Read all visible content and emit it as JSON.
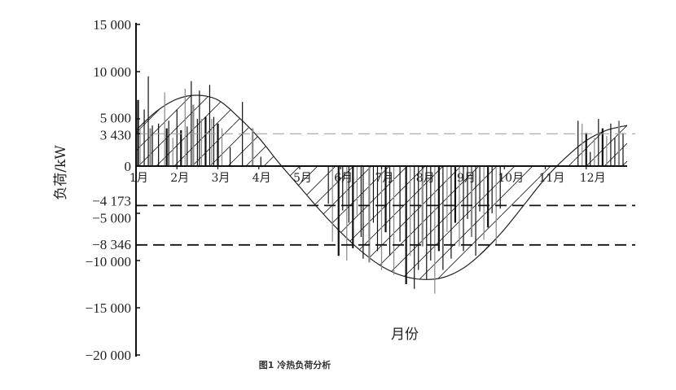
{
  "chart_data": {
    "type": "bar",
    "title": "",
    "caption": "图1 冷热负荷分析",
    "xlabel": "月份",
    "ylabel": "负荷/kW",
    "ylim": [
      -20000,
      15000
    ],
    "xlim": [
      1,
      13
    ],
    "y_ticks": [
      {
        "value": 15000,
        "label": "15 000"
      },
      {
        "value": 10000,
        "label": "10 000"
      },
      {
        "value": 5000,
        "label": "5 000"
      },
      {
        "value": 3430,
        "label": "3 430"
      },
      {
        "value": 0,
        "label": "0"
      },
      {
        "value": -4173,
        "label": "−4 173"
      },
      {
        "value": -5000,
        "label": "−5 000"
      },
      {
        "value": -8346,
        "label": "−8 346"
      },
      {
        "value": -10000,
        "label": "−10 000"
      },
      {
        "value": -15000,
        "label": "−15 000"
      },
      {
        "value": -20000,
        "label": "−20 000"
      }
    ],
    "x_ticks": [
      {
        "value": 1,
        "label": "1月"
      },
      {
        "value": 2,
        "label": "2月"
      },
      {
        "value": 3,
        "label": "3月"
      },
      {
        "value": 4,
        "label": "4月"
      },
      {
        "value": 5,
        "label": "5月"
      },
      {
        "value": 6,
        "label": "6月"
      },
      {
        "value": 7,
        "label": "7月"
      },
      {
        "value": 8,
        "label": "8月"
      },
      {
        "value": 9,
        "label": "9月"
      },
      {
        "value": 10,
        "label": "10月"
      },
      {
        "value": 11,
        "label": "11月"
      },
      {
        "value": 12,
        "label": "12月"
      }
    ],
    "reference_lines": [
      {
        "value": 3430,
        "style": "dashed",
        "color": "#999999"
      },
      {
        "value": -4173,
        "style": "dashed",
        "color": "#111111"
      },
      {
        "value": -8346,
        "style": "dashed",
        "color": "#111111"
      }
    ],
    "curve": [
      [
        1,
        3800
      ],
      [
        1.5,
        5800
      ],
      [
        2,
        7100
      ],
      [
        2.5,
        7500
      ],
      [
        3,
        7000
      ],
      [
        3.5,
        5200
      ],
      [
        4,
        3000
      ],
      [
        4.5,
        300
      ],
      [
        5,
        -2200
      ],
      [
        5.5,
        -4700
      ],
      [
        6,
        -7000
      ],
      [
        6.5,
        -9000
      ],
      [
        7,
        -10600
      ],
      [
        7.5,
        -11600
      ],
      [
        8,
        -12000
      ],
      [
        8.5,
        -11800
      ],
      [
        9,
        -10800
      ],
      [
        9.5,
        -9000
      ],
      [
        10,
        -6700
      ],
      [
        10.5,
        -4000
      ],
      [
        11,
        -1300
      ],
      [
        11.5,
        900
      ],
      [
        12,
        2700
      ],
      [
        12.5,
        3800
      ],
      [
        13,
        4300
      ]
    ],
    "bars": [
      [
        1.05,
        7000
      ],
      [
        1.1,
        4000
      ],
      [
        1.2,
        6000
      ],
      [
        1.3,
        9500
      ],
      [
        1.35,
        4000
      ],
      [
        1.4,
        4300
      ],
      [
        1.55,
        4500
      ],
      [
        1.7,
        7800
      ],
      [
        1.75,
        4000
      ],
      [
        1.8,
        4800
      ],
      [
        1.9,
        3000
      ],
      [
        2.0,
        6000
      ],
      [
        2.1,
        3800
      ],
      [
        2.2,
        8200
      ],
      [
        2.25,
        4200
      ],
      [
        2.35,
        9000
      ],
      [
        2.4,
        6500
      ],
      [
        2.5,
        5000
      ],
      [
        2.55,
        8000
      ],
      [
        2.6,
        5000
      ],
      [
        2.7,
        5200
      ],
      [
        2.8,
        8600
      ],
      [
        2.85,
        5000
      ],
      [
        2.9,
        5200
      ],
      [
        3.0,
        4500
      ],
      [
        3.1,
        4000
      ],
      [
        3.3,
        2000
      ],
      [
        3.6,
        6800
      ],
      [
        3.85,
        4000
      ],
      [
        4.05,
        1000
      ],
      [
        11.8,
        4800
      ],
      [
        11.9,
        4500
      ],
      [
        12.0,
        3500
      ],
      [
        12.1,
        1500
      ],
      [
        12.2,
        3000
      ],
      [
        12.3,
        5000
      ],
      [
        12.4,
        4000
      ],
      [
        12.5,
        3200
      ],
      [
        12.6,
        4500
      ],
      [
        12.7,
        3000
      ],
      [
        12.8,
        4800
      ],
      [
        12.9,
        3500
      ],
      [
        5.7,
        -4000
      ],
      [
        5.8,
        -8000
      ],
      [
        5.95,
        -9500
      ],
      [
        6.05,
        -4700
      ],
      [
        6.15,
        -10000
      ],
      [
        6.2,
        -6000
      ],
      [
        6.3,
        -8700
      ],
      [
        6.4,
        -5200
      ],
      [
        6.5,
        -7500
      ],
      [
        6.55,
        -9800
      ],
      [
        6.7,
        -10200
      ],
      [
        6.8,
        -6000
      ],
      [
        6.9,
        -9000
      ],
      [
        7.0,
        -11000
      ],
      [
        7.1,
        -7000
      ],
      [
        7.2,
        -9500
      ],
      [
        7.3,
        -11500
      ],
      [
        7.45,
        -8000
      ],
      [
        7.6,
        -12500
      ],
      [
        7.7,
        -9500
      ],
      [
        7.8,
        -13000
      ],
      [
        7.9,
        -11000
      ],
      [
        8.0,
        -8500
      ],
      [
        8.1,
        -12000
      ],
      [
        8.2,
        -10000
      ],
      [
        8.3,
        -13500
      ],
      [
        8.4,
        -9000
      ],
      [
        8.5,
        -11000
      ],
      [
        8.6,
        -7000
      ],
      [
        8.7,
        -9800
      ],
      [
        8.8,
        -6000
      ],
      [
        8.9,
        -8500
      ],
      [
        9.0,
        -9000
      ],
      [
        9.1,
        -5600
      ],
      [
        9.2,
        -7500
      ],
      [
        9.3,
        -9500
      ],
      [
        9.4,
        -4800
      ],
      [
        9.5,
        -7800
      ],
      [
        9.6,
        -6500
      ],
      [
        9.7,
        -5000
      ],
      [
        9.8,
        -8300
      ],
      [
        9.9,
        -4500
      ]
    ],
    "grid": false,
    "curve_fill": "hatched"
  }
}
